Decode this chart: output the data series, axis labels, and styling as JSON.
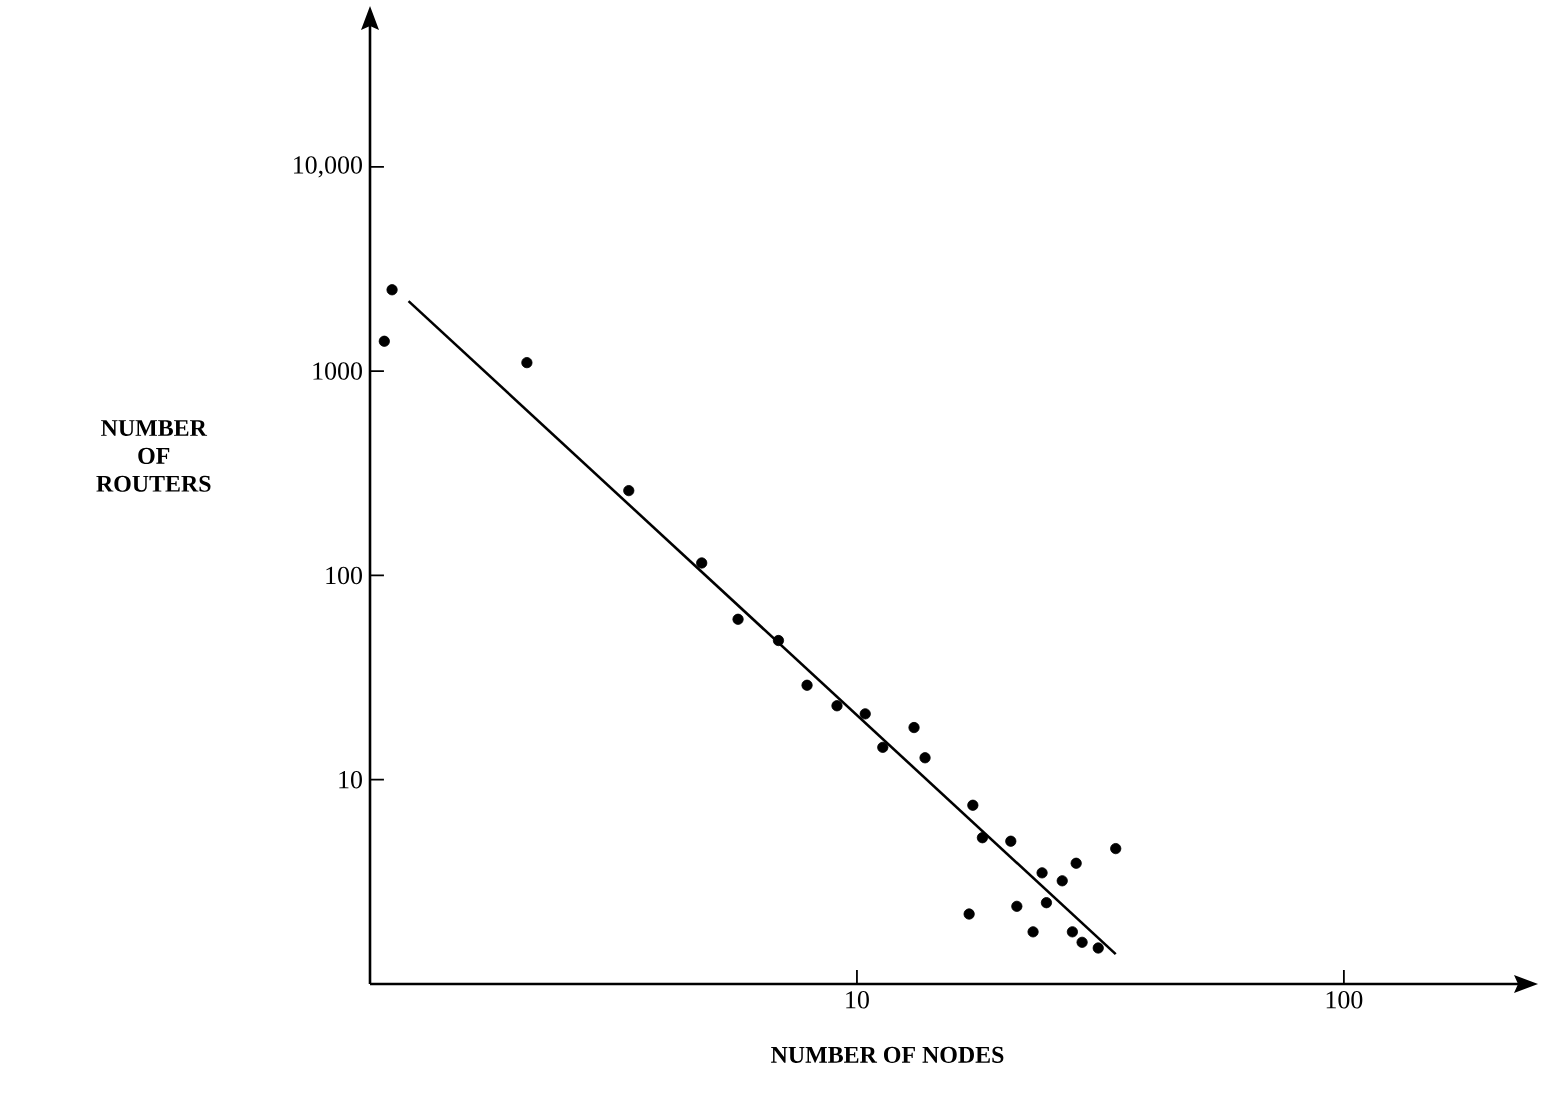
{
  "chart_data": {
    "type": "scatter",
    "xlabel": "NUMBER OF NODES",
    "ylabel": "NUMBER OF ROUTERS",
    "log": "xy",
    "xlim": [
      1,
      230
    ],
    "ylim": [
      1,
      50000
    ],
    "xticks": [
      10,
      100
    ],
    "yticks": [
      10,
      100,
      1000,
      {
        "value": 10000,
        "label": "10,000"
      }
    ],
    "series": [
      {
        "color": "#000000",
        "marker": "circle",
        "x": [
          1.07,
          1.11,
          2.1,
          3.4,
          4.8,
          5.7,
          6.9,
          7.9,
          9.1,
          10.4,
          11.3,
          13.1,
          13.8,
          17.3,
          17.0,
          18.1,
          20.7,
          21.3,
          23,
          24,
          24.5,
          26.4,
          28.2,
          27.7,
          29,
          31.3,
          34
        ],
        "values": [
          1400,
          2500,
          1100,
          260,
          115,
          61,
          48,
          29,
          23,
          21,
          14.4,
          18,
          12.8,
          7.5,
          2.2,
          5.2,
          5.0,
          2.4,
          1.8,
          3.5,
          2.5,
          3.2,
          3.9,
          1.8,
          1.6,
          1.5,
          4.6
        ]
      },
      {
        "type": "line",
        "color": "#000000",
        "marker": "none",
        "x": [
          1.2,
          34
        ],
        "values": [
          2200,
          1.4
        ]
      }
    ]
  }
}
